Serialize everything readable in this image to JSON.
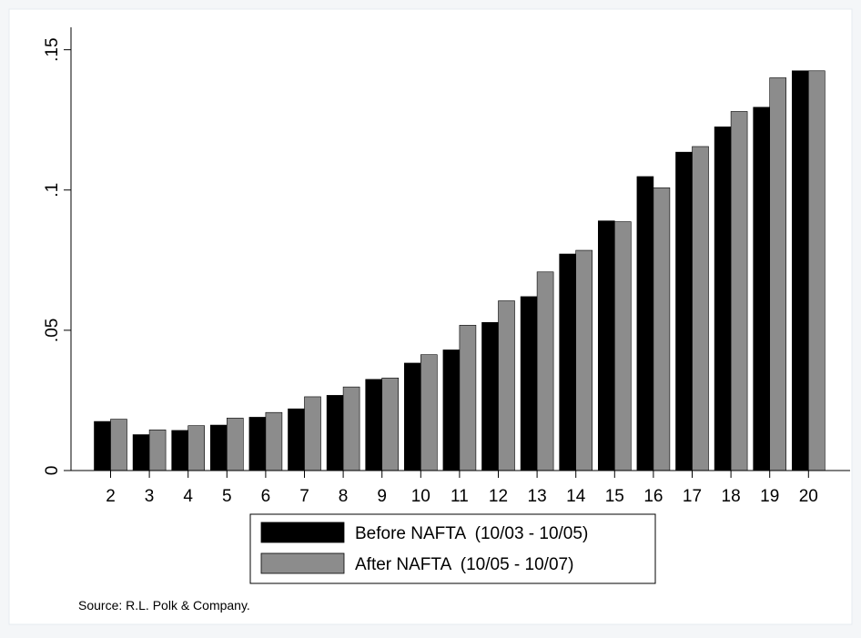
{
  "chart_data": {
    "type": "bar",
    "categories": [
      "2",
      "3",
      "4",
      "5",
      "6",
      "7",
      "8",
      "9",
      "10",
      "11",
      "12",
      "13",
      "14",
      "15",
      "16",
      "17",
      "18",
      "19",
      "20"
    ],
    "series": [
      {
        "name": "Before NAFTA  (10/03 - 10/05)",
        "color": "#000000",
        "values": [
          0.0175,
          0.0128,
          0.0143,
          0.0162,
          0.019,
          0.022,
          0.0268,
          0.0325,
          0.0383,
          0.043,
          0.0528,
          0.062,
          0.0772,
          0.089,
          0.1048,
          0.1135,
          0.1225,
          0.1295,
          0.1425
        ]
      },
      {
        "name": "After NAFTA  (10/05 - 10/07)",
        "color": "#8c8c8c",
        "values": [
          0.0183,
          0.0145,
          0.016,
          0.0187,
          0.0207,
          0.0263,
          0.0298,
          0.033,
          0.0413,
          0.0518,
          0.0605,
          0.0708,
          0.0785,
          0.0887,
          0.1008,
          0.1155,
          0.128,
          0.14,
          0.1425
        ]
      }
    ],
    "yticks": [
      {
        "value": 0,
        "label": "0"
      },
      {
        "value": 0.05,
        "label": ".05"
      },
      {
        "value": 0.1,
        "label": ".1"
      },
      {
        "value": 0.15,
        "label": ".15"
      }
    ],
    "ylim": [
      0,
      0.158
    ],
    "grid": false,
    "legend_position": "bottom-center",
    "note": "Source: R.L. Polk & Company."
  }
}
